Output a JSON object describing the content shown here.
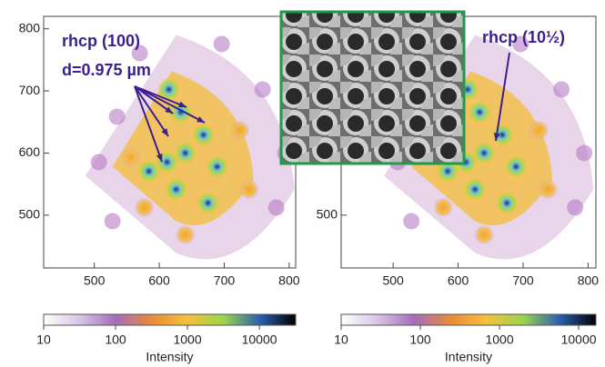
{
  "chart_data": [
    {
      "type": "image",
      "xlim": [
        422,
        810
      ],
      "ylim": [
        415,
        820
      ],
      "xticks": [
        500,
        600,
        700,
        800
      ],
      "yticks": [
        500,
        600,
        700,
        800
      ],
      "annotations": [
        "rhcp (100)",
        "d=0.975 µm"
      ],
      "colorbar": {
        "label": "Intensity",
        "lim": [
          10,
          32000
        ],
        "ticks": [
          10,
          100,
          1000,
          10000
        ],
        "log": true,
        "colors": [
          "#ffffff",
          "#d6c6e6",
          "#a56bbb",
          "#e98b3a",
          "#f6c23a",
          "#9ad44f",
          "#2b5fb0",
          "#000000"
        ]
      }
    },
    {
      "type": "image",
      "xlim": [
        420,
        812
      ],
      "ylim": [
        415,
        820
      ],
      "xticks": [
        500,
        600,
        700,
        800
      ],
      "yticks": [
        500
      ],
      "annotations": [
        "rhcp (10½)"
      ],
      "colorbar": {
        "label": "Intensity",
        "lim": [
          10,
          16500
        ],
        "ticks": [
          10,
          100,
          1000,
          10000
        ],
        "log": true,
        "colors": [
          "#ffffff",
          "#d6c6e6",
          "#a56bbb",
          "#e98b3a",
          "#f6c23a",
          "#9ad44f",
          "#2b5fb0",
          "#000000"
        ]
      }
    }
  ]
}
